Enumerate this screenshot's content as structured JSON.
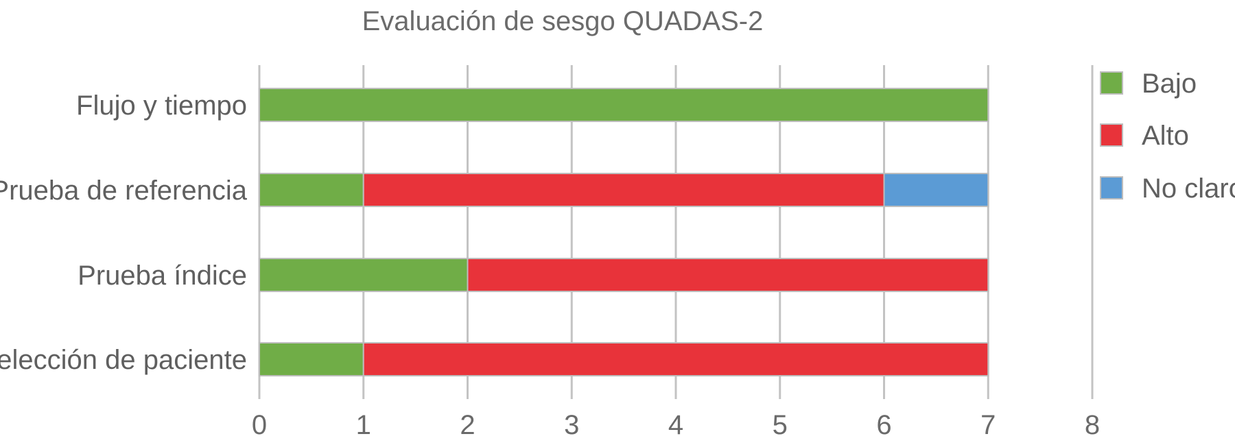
{
  "chart_data": {
    "type": "bar",
    "orientation": "horizontal",
    "stacked": true,
    "title": "Evaluación de sesgo QUADAS-2",
    "xlabel": "",
    "ylabel": "",
    "categories": [
      "Flujo y tiempo",
      "Prueba de referencia",
      "Prueba índice",
      "Selección de paciente"
    ],
    "series": [
      {
        "name": "Bajo",
        "color": "#70ad47",
        "values": [
          7,
          1,
          2,
          1
        ]
      },
      {
        "name": "Alto",
        "color": "#e8333a",
        "values": [
          0,
          5,
          5,
          6
        ]
      },
      {
        "name": "No claro",
        "color": "#5b9bd5",
        "values": [
          0,
          1,
          0,
          0
        ]
      }
    ],
    "xlim": [
      0,
      8
    ],
    "xticks": [
      "0",
      "1",
      "2",
      "3",
      "4",
      "5",
      "6",
      "7",
      "8"
    ],
    "grid": true,
    "legend_position": "right"
  }
}
